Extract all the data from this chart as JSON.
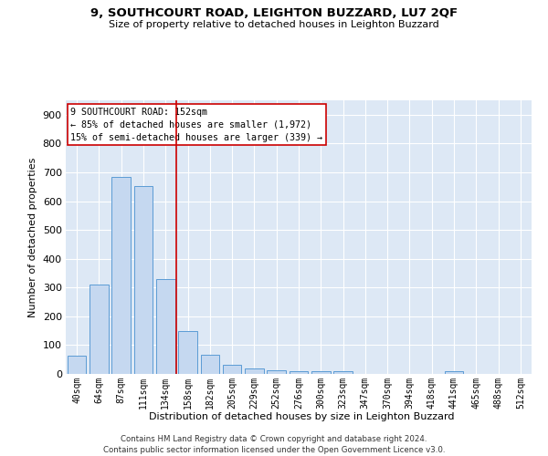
{
  "title": "9, SOUTHCOURT ROAD, LEIGHTON BUZZARD, LU7 2QF",
  "subtitle": "Size of property relative to detached houses in Leighton Buzzard",
  "xlabel": "Distribution of detached houses by size in Leighton Buzzard",
  "ylabel": "Number of detached properties",
  "bar_labels": [
    "40sqm",
    "64sqm",
    "87sqm",
    "111sqm",
    "134sqm",
    "158sqm",
    "182sqm",
    "205sqm",
    "229sqm",
    "252sqm",
    "276sqm",
    "300sqm",
    "323sqm",
    "347sqm",
    "370sqm",
    "394sqm",
    "418sqm",
    "441sqm",
    "465sqm",
    "488sqm",
    "512sqm"
  ],
  "bar_values": [
    62,
    310,
    683,
    653,
    330,
    148,
    65,
    33,
    20,
    12,
    10,
    10,
    8,
    0,
    0,
    0,
    0,
    8,
    0,
    0,
    0
  ],
  "bar_color": "#c5d8f0",
  "bar_edge_color": "#5b9bd5",
  "background_color": "#dde8f5",
  "grid_color": "#ffffff",
  "vline_color": "#cc0000",
  "vline_x_index": 4.5,
  "ylim": [
    0,
    950
  ],
  "yticks": [
    0,
    100,
    200,
    300,
    400,
    500,
    600,
    700,
    800,
    900
  ],
  "annotation_title": "9 SOUTHCOURT ROAD: 152sqm",
  "annotation_line1": "← 85% of detached houses are smaller (1,972)",
  "annotation_line2": "15% of semi-detached houses are larger (339) →",
  "footnote1": "Contains HM Land Registry data © Crown copyright and database right 2024.",
  "footnote2": "Contains public sector information licensed under the Open Government Licence v3.0."
}
